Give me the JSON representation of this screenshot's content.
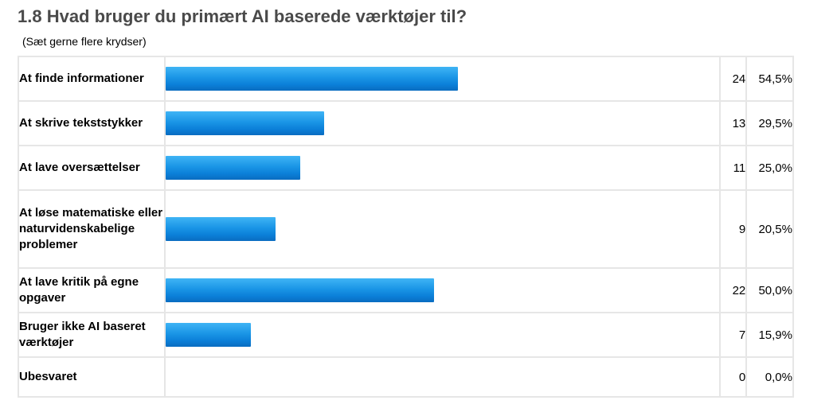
{
  "title": "1.8 Hvad bruger du primært AI baserede værktøjer til?",
  "subtitle": "(Sæt gerne flere krydser)",
  "colors": {
    "bar": "#1a95e6",
    "title": "#4a4a4a",
    "border": "#e6e6e6"
  },
  "chart_data": {
    "type": "bar",
    "orientation": "horizontal",
    "title": "1.8 Hvad bruger du primært AI baserede værktøjer til?",
    "subtitle": "(Sæt gerne flere krydser)",
    "rows": [
      {
        "label": "At finde informationer",
        "count": "24",
        "percent": "54,5%",
        "value": 54.5
      },
      {
        "label": "At skrive tekststykker",
        "count": "13",
        "percent": "29,5%",
        "value": 29.5
      },
      {
        "label": "At lave oversættelser",
        "count": "11",
        "percent": "25,0%",
        "value": 25.0
      },
      {
        "label": "At løse matematiske eller naturvidenskabelige problemer",
        "count": "9",
        "percent": "20,5%",
        "value": 20.5
      },
      {
        "label": "At lave kritik på egne opgaver",
        "count": "22",
        "percent": "50,0%",
        "value": 50.0
      },
      {
        "label": "Bruger ikke AI baseret værktøjer",
        "count": "7",
        "percent": "15,9%",
        "value": 15.9
      },
      {
        "label": "Ubesvaret",
        "count": "0",
        "percent": "0,0%",
        "value": 0.0
      }
    ]
  }
}
